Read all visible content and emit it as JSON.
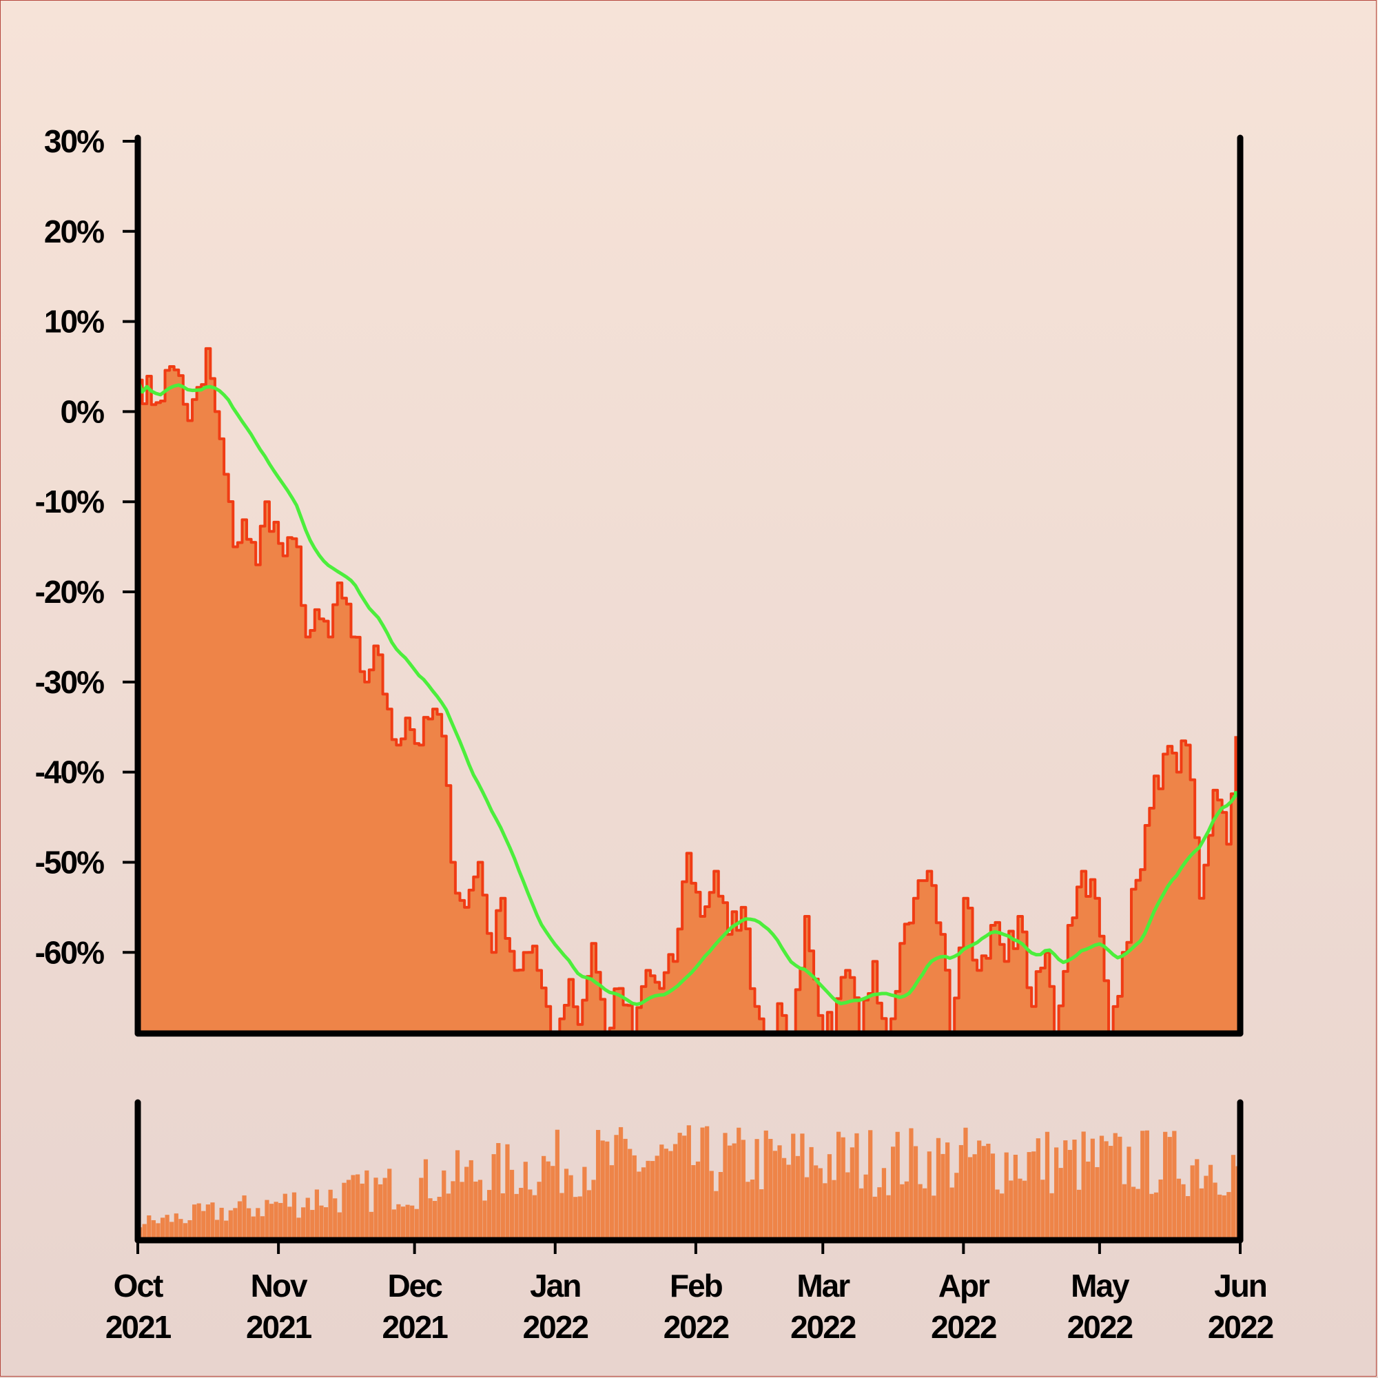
{
  "chart_data": {
    "type": "area",
    "title": "",
    "xlabel": "",
    "ylabel": "",
    "x_range": [
      "2021-10-01",
      "2022-06-01"
    ],
    "ylim": [
      -69,
      30
    ],
    "y_ticks": [
      30,
      20,
      10,
      0,
      -10,
      -20,
      -30,
      -40,
      -50,
      -60
    ],
    "y_tick_labels": [
      "30%",
      "20%",
      "10%",
      "0%",
      "-10%",
      "-20%",
      "-30%",
      "-40%",
      "-50%",
      "-60%"
    ],
    "x_ticks": [
      {
        "date": "2021-10-01",
        "month": "Oct",
        "year": "2021"
      },
      {
        "date": "2021-11-01",
        "month": "Nov",
        "year": "2021"
      },
      {
        "date": "2021-12-01",
        "month": "Dec",
        "year": "2021"
      },
      {
        "date": "2022-01-01",
        "month": "Jan",
        "year": "2022"
      },
      {
        "date": "2022-02-01",
        "month": "Feb",
        "year": "2022"
      },
      {
        "date": "2022-03-01",
        "month": "Mar",
        "year": "2022"
      },
      {
        "date": "2022-04-01",
        "month": "Apr",
        "year": "2022"
      },
      {
        "date": "2022-05-01",
        "month": "May",
        "year": "2022"
      },
      {
        "date": "2022-06-01",
        "month": "Jun",
        "year": "2022"
      }
    ],
    "grid": false,
    "series": [
      {
        "role": "daily-change-area",
        "color": "#f03c14",
        "fill": "#ee8448",
        "points": [
          [
            "2021-10-01",
            3.5
          ],
          [
            "2021-10-05",
            1
          ],
          [
            "2021-10-08",
            5
          ],
          [
            "2021-10-10",
            4
          ],
          [
            "2021-10-12",
            -1
          ],
          [
            "2021-10-15",
            3
          ],
          [
            "2021-10-16",
            7
          ],
          [
            "2021-10-18",
            0
          ],
          [
            "2021-10-22",
            -15
          ],
          [
            "2021-10-24",
            -12
          ],
          [
            "2021-10-27",
            -17
          ],
          [
            "2021-10-29",
            -10
          ],
          [
            "2021-11-02",
            -16
          ],
          [
            "2021-11-05",
            -15
          ],
          [
            "2021-11-07",
            -25
          ],
          [
            "2021-11-10",
            -23
          ],
          [
            "2021-11-12",
            -25
          ],
          [
            "2021-11-14",
            -19
          ],
          [
            "2021-11-17",
            -25
          ],
          [
            "2021-11-20",
            -30
          ],
          [
            "2021-11-22",
            -26
          ],
          [
            "2021-11-25",
            -33
          ],
          [
            "2021-11-27",
            -37
          ],
          [
            "2021-11-29",
            -34
          ],
          [
            "2021-12-02",
            -37
          ],
          [
            "2021-12-05",
            -33
          ],
          [
            "2021-12-07",
            -36
          ],
          [
            "2021-12-09",
            -50
          ],
          [
            "2021-12-12",
            -55
          ],
          [
            "2021-12-15",
            -50
          ],
          [
            "2021-12-18",
            -60
          ],
          [
            "2021-12-20",
            -54
          ],
          [
            "2021-12-23",
            -62
          ],
          [
            "2021-12-26",
            -60
          ],
          [
            "2021-12-28",
            -62
          ],
          [
            "2021-12-30",
            -66
          ],
          [
            "2022-01-01",
            -69
          ],
          [
            "2022-01-04",
            -63
          ],
          [
            "2022-01-06",
            -68
          ],
          [
            "2022-01-09",
            -59
          ],
          [
            "2022-01-12",
            -69
          ],
          [
            "2022-01-15",
            -64
          ],
          [
            "2022-01-18",
            -69
          ],
          [
            "2022-01-21",
            -62
          ],
          [
            "2022-01-24",
            -64
          ],
          [
            "2022-01-27",
            -61
          ],
          [
            "2022-01-30",
            -49
          ],
          [
            "2022-02-02",
            -56
          ],
          [
            "2022-02-05",
            -51
          ],
          [
            "2022-02-08",
            -58
          ],
          [
            "2022-02-11",
            -55
          ],
          [
            "2022-02-14",
            -66
          ],
          [
            "2022-02-17",
            -69
          ],
          [
            "2022-02-20",
            -67
          ],
          [
            "2022-02-22",
            -69
          ],
          [
            "2022-02-25",
            -56
          ],
          [
            "2022-02-28",
            -67
          ],
          [
            "2022-03-03",
            -69
          ],
          [
            "2022-03-06",
            -62
          ],
          [
            "2022-03-09",
            -69
          ],
          [
            "2022-03-12",
            -61
          ],
          [
            "2022-03-15",
            -69
          ],
          [
            "2022-03-18",
            -59
          ],
          [
            "2022-03-21",
            -54
          ],
          [
            "2022-03-24",
            -51
          ],
          [
            "2022-03-27",
            -58
          ],
          [
            "2022-03-29",
            -69
          ],
          [
            "2022-04-01",
            -54
          ],
          [
            "2022-04-04",
            -62
          ],
          [
            "2022-04-07",
            -57
          ],
          [
            "2022-04-10",
            -61
          ],
          [
            "2022-04-13",
            -56
          ],
          [
            "2022-04-16",
            -66
          ],
          [
            "2022-04-19",
            -60
          ],
          [
            "2022-04-21",
            -69
          ],
          [
            "2022-04-24",
            -57
          ],
          [
            "2022-04-27",
            -51
          ],
          [
            "2022-04-30",
            -54
          ],
          [
            "2022-05-03",
            -69
          ],
          [
            "2022-05-06",
            -60
          ],
          [
            "2022-05-09",
            -52
          ],
          [
            "2022-05-12",
            -44
          ],
          [
            "2022-05-15",
            -38
          ],
          [
            "2022-05-18",
            -40
          ],
          [
            "2022-05-20",
            -37
          ],
          [
            "2022-05-23",
            -54
          ],
          [
            "2022-05-26",
            -42
          ],
          [
            "2022-05-29",
            -48
          ],
          [
            "2022-05-31",
            -36
          ],
          [
            "2022-05-31",
            -36
          ]
        ]
      },
      {
        "role": "moving-average",
        "color": "#4cee3c",
        "points": []
      },
      {
        "role": "volume-bars",
        "color": "#ee8448",
        "points": []
      }
    ]
  }
}
